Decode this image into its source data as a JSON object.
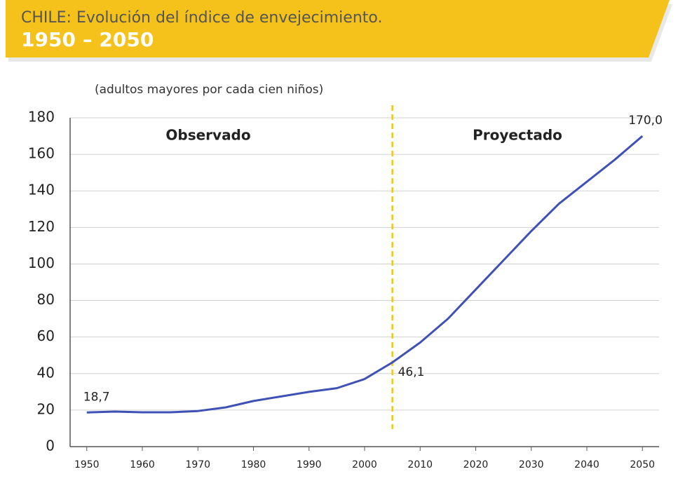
{
  "chart_data": {
    "type": "line",
    "title": "CHILE: Evolución del índice de envejecimiento.",
    "subtitle": "1950 – 2050",
    "y_label": "(adultos mayores por cada cien niños)",
    "annotations": [
      "Observado",
      "Proyectado"
    ],
    "divider_x": 2005,
    "x": [
      1950,
      1955,
      1960,
      1965,
      1970,
      1975,
      1980,
      1985,
      1990,
      1995,
      2000,
      2005,
      2010,
      2015,
      2020,
      2025,
      2030,
      2035,
      2040,
      2045,
      2050
    ],
    "series": [
      {
        "name": "Índice de envejecimiento",
        "color": "#3f51b5",
        "values": [
          18.7,
          19.2,
          18.8,
          18.8,
          19.5,
          21.5,
          25,
          27.5,
          30,
          32,
          37,
          46.1,
          57,
          70,
          86,
          102,
          118,
          133,
          145,
          157,
          170
        ],
        "value_labels": [
          "18,7",
          null,
          null,
          null,
          null,
          null,
          null,
          null,
          null,
          null,
          null,
          "46,1",
          null,
          null,
          null,
          null,
          null,
          null,
          null,
          null,
          "170,0"
        ]
      }
    ],
    "xlim": [
      1947,
      2053
    ],
    "xticks": [
      1950,
      1960,
      1970,
      1980,
      1990,
      2000,
      2010,
      2020,
      2030,
      2040,
      2050
    ],
    "ylim": [
      0,
      180
    ],
    "yticks": [
      0,
      20,
      40,
      60,
      80,
      100,
      120,
      140,
      160,
      180
    ],
    "grid": true
  }
}
